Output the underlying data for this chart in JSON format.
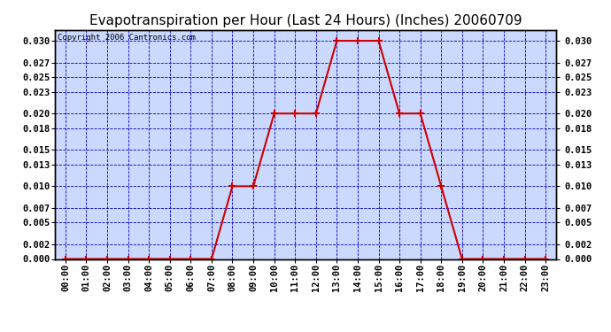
{
  "title": "Evapotranspiration per Hour (Last 24 Hours) (Inches) 20060709",
  "copyright": "Copyright 2006 Cantronics.com",
  "hours": [
    0,
    1,
    2,
    3,
    4,
    5,
    6,
    7,
    8,
    9,
    10,
    11,
    12,
    13,
    14,
    15,
    16,
    17,
    18,
    19,
    20,
    21,
    22,
    23
  ],
  "values": [
    0.0,
    0.0,
    0.0,
    0.0,
    0.0,
    0.0,
    0.0,
    0.0,
    0.01,
    0.01,
    0.02,
    0.02,
    0.02,
    0.03,
    0.03,
    0.03,
    0.02,
    0.02,
    0.01,
    0.0,
    0.0,
    0.0,
    0.0,
    0.0
  ],
  "yticks": [
    0.0,
    0.002,
    0.005,
    0.007,
    0.01,
    0.013,
    0.015,
    0.018,
    0.02,
    0.023,
    0.025,
    0.027,
    0.03
  ],
  "ylim": [
    0.0,
    0.0315
  ],
  "xlim": [
    -0.5,
    23.5
  ],
  "line_color": "#cc0000",
  "grid_color": "#0000bb",
  "bg_color": "#ccd9ff",
  "border_color": "#000000",
  "title_fontsize": 11,
  "copyright_fontsize": 6.5,
  "tick_fontsize": 7.5,
  "ytick_fontsize": 7.5
}
